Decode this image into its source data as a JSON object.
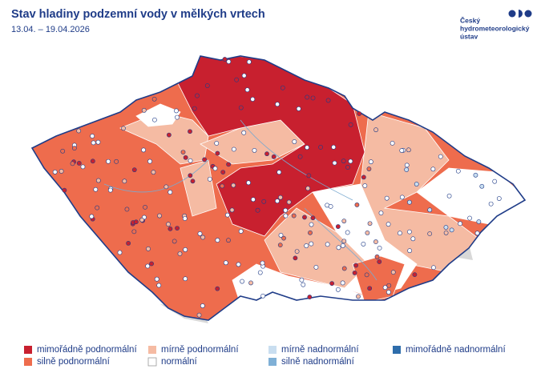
{
  "header": {
    "title": "Stav hladiny podzemní vody v mělkých vrtech",
    "subtitle": "13.04. – 19.04.2026"
  },
  "logo": {
    "lines": [
      "Český",
      "hydrometeorologický",
      "ústav"
    ]
  },
  "legend": [
    {
      "label": "mimořádně podnormální",
      "color": "#c8202f"
    },
    {
      "label": "silně podnormální",
      "color": "#ee6c4d"
    },
    {
      "label": "mírně podnormální",
      "color": "#f5bba3"
    },
    {
      "label": "normální",
      "color": "#ffffff"
    },
    {
      "label": "mírně nadnormální",
      "color": "#c9def0"
    },
    {
      "label": "silně nadnormální",
      "color": "#7fb0d6"
    },
    {
      "label": "mimořádně nadnormální",
      "color": "#2e6dab"
    }
  ]
}
